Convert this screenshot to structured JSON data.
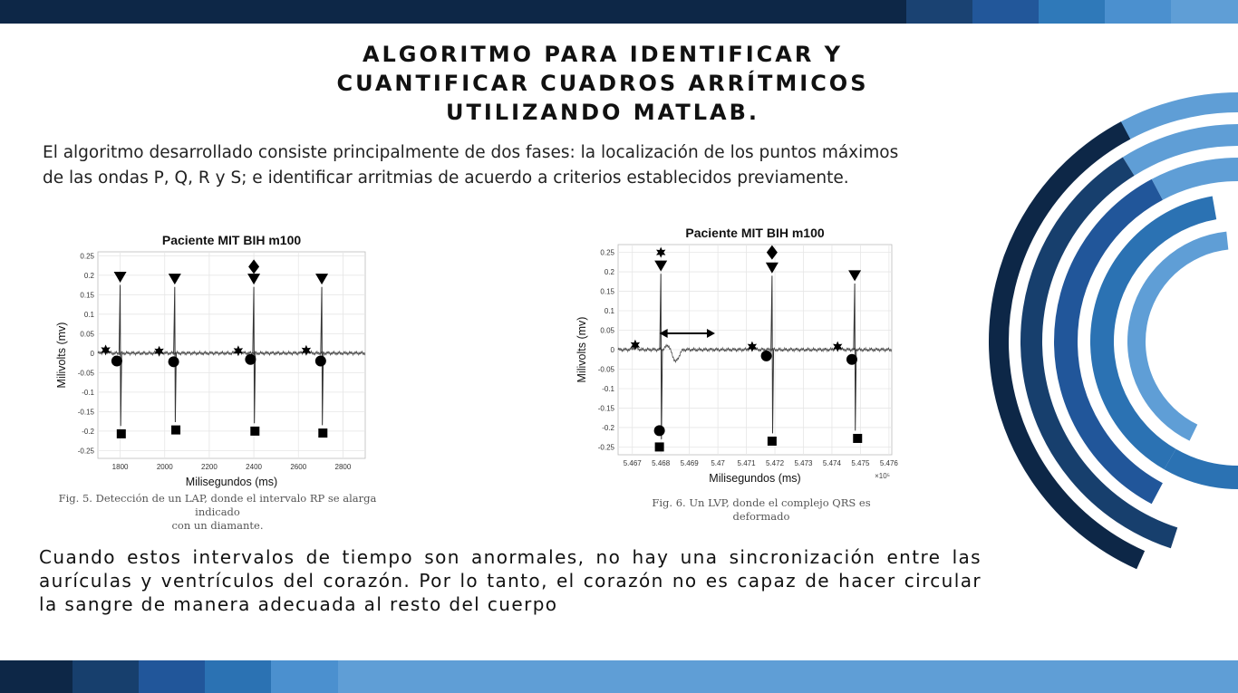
{
  "colors": {
    "bar_segments_top": [
      "#0d2747",
      "#0d2747",
      "#1a4272",
      "#22579a",
      "#2f79b9",
      "#4b90cf",
      "#5f9ed6"
    ],
    "bar_segments_bottom": [
      "#0d2747",
      "#173f6d",
      "#21569a",
      "#2b72b3",
      "#4b90cf",
      "#5f9ed6"
    ],
    "arcs": [
      "#0d2747",
      "#173f6d",
      "#21569a",
      "#2b72b3",
      "#5f9ed6"
    ]
  },
  "title": {
    "line1": "ALGORITMO PARA IDENTIFICAR Y",
    "line2": "CUANTIFICAR CUADROS ARRÍTMICOS",
    "line3": "UTILIZANDO MATLAB."
  },
  "intro": {
    "line1": "El algoritmo desarrollado consiste principalmente de dos fases: la localización de los puntos máximos",
    "line2": "de las ondas P, Q, R y S; e identificar arritmias de acuerdo a criterios establecidos previamente."
  },
  "conclusion": "Cuando estos intervalos de tiempo son anormales, no hay una sincronización entre las aurículas y ventrículos del corazón. Por lo tanto, el corazón no es capaz de hacer circular la sangre de manera adecuada al resto del cuerpo",
  "chart_data": [
    {
      "type": "line",
      "title": "Paciente MIT BIH m100",
      "xlabel": "Milisegundos (ms)",
      "ylabel": "Milivolts (mv)",
      "xlim": [
        1700,
        2900
      ],
      "ylim": [
        -0.27,
        0.26
      ],
      "x_ticks": [
        1800,
        2000,
        2200,
        2400,
        2600,
        2800
      ],
      "y_ticks": [
        0.25,
        0.2,
        0.15,
        0.1,
        0.05,
        0,
        -0.05,
        -0.1,
        -0.15,
        -0.2,
        -0.25
      ],
      "grid": true,
      "markers": {
        "P_star": [
          [
            1735,
            0.008
          ],
          [
            1975,
            0.005
          ],
          [
            2330,
            0.006
          ],
          [
            2635,
            0.007
          ]
        ],
        "Q_circle": [
          [
            1785,
            -0.02
          ],
          [
            2040,
            -0.022
          ],
          [
            2385,
            -0.016
          ],
          [
            2700,
            -0.02
          ]
        ],
        "R_triangle": [
          [
            1800,
            0.195
          ],
          [
            2045,
            0.19
          ],
          [
            2400,
            0.19
          ],
          [
            2705,
            0.19
          ]
        ],
        "S_square": [
          [
            1805,
            -0.207
          ],
          [
            2050,
            -0.197
          ],
          [
            2405,
            -0.2
          ],
          [
            2710,
            -0.205
          ]
        ],
        "diamond": [
          [
            2400,
            0.222
          ]
        ]
      },
      "beats": [
        1800,
        2045,
        2400,
        2705
      ],
      "caption_line1": "Fig. 5. Detección de un LAP, donde el intervalo RP se alarga indicado",
      "caption_line2": "con un diamante."
    },
    {
      "type": "line",
      "title": "Paciente MIT BIH m100",
      "xlabel": "Milisegundos (ms)",
      "ylabel": "Milivolts (mv)",
      "x_exponent": "×10⁵",
      "xlim": [
        5.4665,
        5.4761
      ],
      "ylim": [
        -0.27,
        0.27
      ],
      "x_ticks": [
        5.467,
        5.468,
        5.469,
        5.47,
        5.471,
        5.472,
        5.473,
        5.474,
        5.475,
        5.476
      ],
      "x_tick_labels": [
        "5.467",
        "5.468",
        "5.469",
        "5.47",
        "5.471",
        "5.472",
        "5.473",
        "5.474",
        "5.475",
        "5.476"
      ],
      "y_ticks": [
        0.25,
        0.2,
        0.15,
        0.1,
        0.05,
        0,
        -0.05,
        -0.1,
        -0.15,
        -0.2,
        -0.25
      ],
      "grid": true,
      "markers": {
        "P_star": [
          [
            5.4671,
            0.012
          ],
          [
            5.4712,
            0.008
          ],
          [
            5.4742,
            0.008
          ]
        ],
        "Q_circle": [
          [
            5.46795,
            -0.208
          ],
          [
            5.4717,
            -0.016
          ],
          [
            5.4747,
            -0.025
          ]
        ],
        "R_triangle": [
          [
            5.468,
            0.215
          ],
          [
            5.4719,
            0.21
          ],
          [
            5.4748,
            0.19
          ]
        ],
        "S_square": [
          [
            5.46795,
            -0.25
          ],
          [
            5.4719,
            -0.235
          ],
          [
            5.4749,
            -0.228
          ]
        ],
        "star_top": [
          [
            5.468,
            0.25
          ]
        ],
        "diamond": [
          [
            5.4719,
            0.25
          ]
        ]
      },
      "arrow": {
        "from": [
          5.46795,
          0.042
        ],
        "to": [
          5.4699,
          0.042
        ]
      },
      "caption_line1": "Fig. 6. Un LVP, donde el complejo QRS es",
      "caption_line2": "deformado"
    }
  ]
}
